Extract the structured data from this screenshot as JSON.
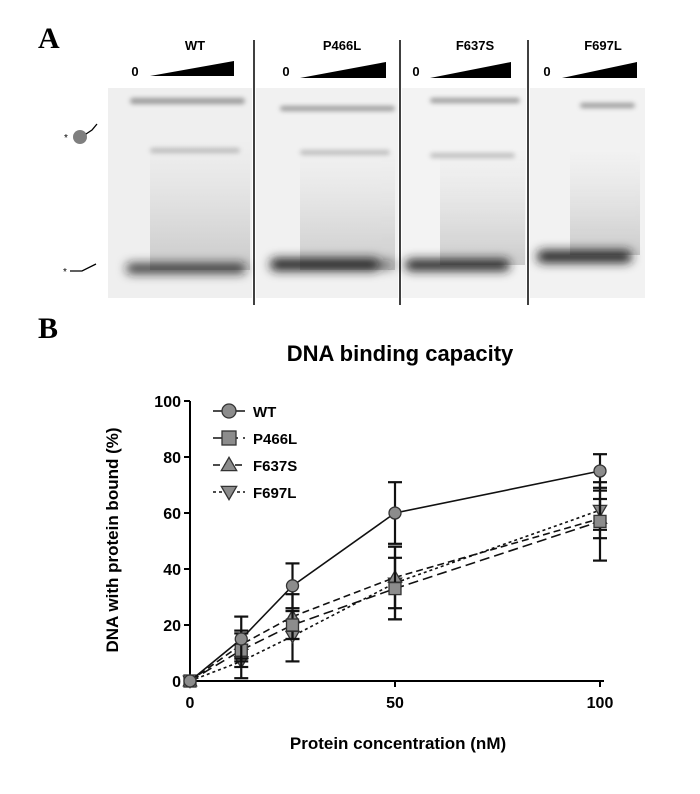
{
  "panels": {
    "a_label": "A",
    "b_label": "B"
  },
  "gel": {
    "groups": [
      {
        "name": "WT",
        "zero": "0"
      },
      {
        "name": "P466L",
        "zero": "0"
      },
      {
        "name": "F637S",
        "zero": "0"
      },
      {
        "name": "F697L",
        "zero": "0"
      }
    ],
    "band_marker": "*"
  },
  "chart_data": {
    "type": "line",
    "title": "DNA binding capacity",
    "xlabel": "Protein concentration (nM)",
    "ylabel": "DNA with protein bound (%)",
    "xlim": [
      0,
      100
    ],
    "ylim": [
      0,
      100
    ],
    "xticks": [
      0,
      50,
      100
    ],
    "yticks": [
      0,
      20,
      40,
      60,
      80,
      100
    ],
    "x": [
      0,
      12.5,
      25,
      50,
      100
    ],
    "series": [
      {
        "name": "WT",
        "marker": "circle",
        "dash": "solid",
        "values": [
          0,
          15,
          34,
          60,
          75
        ],
        "err": [
          0,
          8,
          8,
          11,
          6
        ]
      },
      {
        "name": "P466L",
        "marker": "square",
        "dash": "long-dash",
        "values": [
          0,
          11,
          20,
          33,
          57
        ],
        "err": [
          0,
          6,
          5,
          11,
          14
        ]
      },
      {
        "name": "F637S",
        "marker": "triangle-up",
        "dash": "dash",
        "values": [
          0,
          13,
          23,
          37,
          58
        ],
        "err": [
          0,
          5,
          8,
          11,
          7
        ]
      },
      {
        "name": "F697L",
        "marker": "triangle-down",
        "dash": "dot",
        "values": [
          0,
          7,
          16,
          35,
          61
        ],
        "err": [
          0,
          6,
          9,
          13,
          7
        ]
      }
    ],
    "legend_position": "top-left",
    "grid": false
  }
}
